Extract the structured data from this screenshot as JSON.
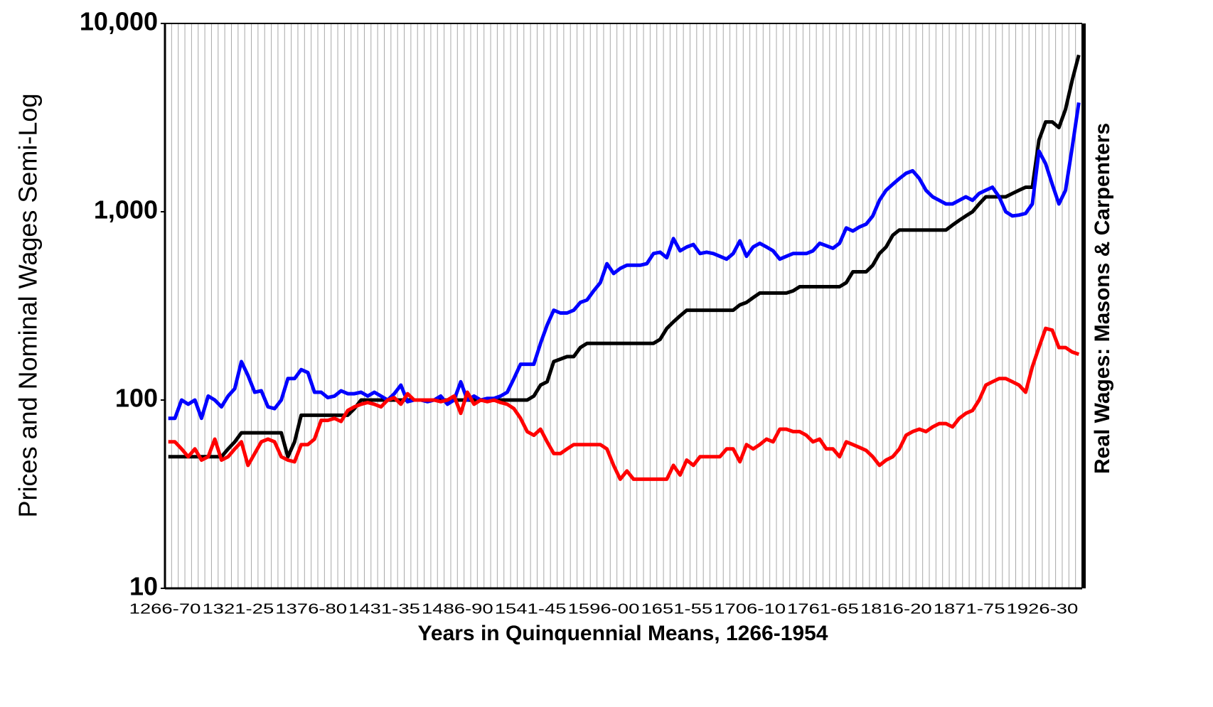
{
  "chart_data": {
    "type": "line",
    "x_label": "Years in Quinquennial Means, 1266-1954",
    "y_label": "Prices and Nominal Wages Semi-Log",
    "y2_label": "Real Wages: Masons & Carpenters",
    "log_scale": true,
    "grid": true,
    "ylim": [
      10,
      10000
    ],
    "yticks": [
      10,
      100,
      {
        "value": 1000,
        "label": "1,000"
      },
      {
        "value": 10000,
        "label": "10,000"
      }
    ],
    "categories": [
      "1266-70",
      null,
      null,
      null,
      null,
      null,
      null,
      null,
      null,
      null,
      null,
      "1321-25",
      null,
      null,
      null,
      null,
      null,
      null,
      null,
      null,
      null,
      null,
      "1376-80",
      null,
      null,
      null,
      null,
      null,
      null,
      null,
      null,
      null,
      null,
      "1431-35",
      null,
      null,
      null,
      null,
      null,
      null,
      null,
      null,
      null,
      null,
      "1486-90",
      null,
      null,
      null,
      null,
      null,
      null,
      null,
      null,
      null,
      null,
      "1541-45",
      null,
      null,
      null,
      null,
      null,
      null,
      null,
      null,
      null,
      null,
      "1596-00",
      null,
      null,
      null,
      null,
      null,
      null,
      null,
      null,
      null,
      null,
      "1651-55",
      null,
      null,
      null,
      null,
      null,
      null,
      null,
      null,
      null,
      null,
      "1706-10",
      null,
      null,
      null,
      null,
      null,
      null,
      null,
      null,
      null,
      null,
      "1761-65",
      null,
      null,
      null,
      null,
      null,
      null,
      null,
      null,
      null,
      null,
      "1816-20",
      null,
      null,
      null,
      null,
      null,
      null,
      null,
      null,
      null,
      null,
      "1871-75",
      null,
      null,
      null,
      null,
      null,
      null,
      null,
      null,
      null,
      null,
      "1926-30",
      null,
      null,
      null,
      null,
      null
    ],
    "series": [
      {
        "color": "#000000",
        "values": [
          50,
          50,
          50,
          50,
          50,
          50,
          50,
          50,
          50,
          55,
          60,
          67,
          67,
          67,
          67,
          67,
          67,
          67,
          50,
          60,
          83,
          83,
          83,
          83,
          83,
          83,
          83,
          83,
          90,
          100,
          100,
          100,
          100,
          100,
          100,
          100,
          100,
          100,
          100,
          100,
          100,
          100,
          100,
          100,
          100,
          100,
          100,
          100,
          100,
          100,
          100,
          100,
          100,
          100,
          100,
          105,
          120,
          125,
          160,
          165,
          170,
          170,
          190,
          200,
          200,
          200,
          200,
          200,
          200,
          200,
          200,
          200,
          200,
          200,
          210,
          240,
          260,
          280,
          300,
          300,
          300,
          300,
          300,
          300,
          300,
          300,
          320,
          330,
          350,
          370,
          370,
          370,
          370,
          370,
          380,
          400,
          400,
          400,
          400,
          400,
          400,
          400,
          420,
          480,
          480,
          480,
          520,
          600,
          650,
          750,
          800,
          800,
          800,
          800,
          800,
          800,
          800,
          800,
          850,
          900,
          950,
          1000,
          1100,
          1200,
          1200,
          1200,
          1200,
          1250,
          1300,
          1350,
          1350,
          2400,
          3000,
          3000,
          2800,
          3500,
          5000,
          6800
        ]
      },
      {
        "color": "#0000ff",
        "values": [
          80,
          80,
          100,
          95,
          100,
          80,
          105,
          100,
          92,
          105,
          115,
          160,
          135,
          110,
          112,
          92,
          90,
          100,
          130,
          130,
          145,
          140,
          110,
          110,
          103,
          105,
          112,
          108,
          108,
          110,
          105,
          110,
          105,
          100,
          108,
          120,
          98,
          100,
          100,
          98,
          100,
          105,
          95,
          100,
          125,
          100,
          105,
          100,
          102,
          102,
          105,
          110,
          130,
          155,
          155,
          155,
          200,
          250,
          300,
          290,
          290,
          300,
          330,
          340,
          380,
          420,
          530,
          470,
          500,
          520,
          520,
          520,
          530,
          600,
          610,
          570,
          720,
          620,
          650,
          670,
          600,
          610,
          600,
          580,
          560,
          600,
          700,
          580,
          650,
          680,
          650,
          620,
          560,
          580,
          600,
          600,
          600,
          620,
          680,
          660,
          640,
          680,
          820,
          790,
          830,
          860,
          950,
          1150,
          1300,
          1400,
          1500,
          1600,
          1650,
          1500,
          1300,
          1200,
          1150,
          1100,
          1100,
          1150,
          1200,
          1150,
          1250,
          1300,
          1350,
          1200,
          1000,
          950,
          960,
          980,
          1100,
          2100,
          1800,
          1400,
          1100,
          1300,
          2200,
          3800
        ]
      },
      {
        "color": "#ff0000",
        "axis": "y2",
        "values": [
          60,
          60,
          55,
          50,
          55,
          48,
          50,
          62,
          48,
          50,
          55,
          60,
          45,
          52,
          60,
          62,
          60,
          50,
          48,
          47,
          58,
          58,
          62,
          78,
          78,
          80,
          77,
          88,
          92,
          95,
          97,
          95,
          92,
          100,
          103,
          95,
          108,
          100,
          100,
          100,
          100,
          98,
          100,
          105,
          85,
          110,
          95,
          100,
          98,
          100,
          97,
          95,
          90,
          80,
          68,
          65,
          70,
          60,
          52,
          52,
          55,
          58,
          58,
          58,
          58,
          58,
          55,
          45,
          38,
          42,
          38,
          38,
          38,
          38,
          38,
          38,
          45,
          40,
          48,
          45,
          50,
          50,
          50,
          50,
          55,
          55,
          47,
          58,
          55,
          58,
          62,
          60,
          70,
          70,
          68,
          68,
          65,
          60,
          62,
          55,
          55,
          50,
          60,
          58,
          56,
          54,
          50,
          45,
          48,
          50,
          55,
          65,
          68,
          70,
          68,
          72,
          75,
          75,
          72,
          80,
          85,
          88,
          100,
          120,
          125,
          130,
          130,
          125,
          120,
          110,
          150,
          190,
          240,
          235,
          190,
          190,
          180,
          175
        ]
      }
    ]
  }
}
